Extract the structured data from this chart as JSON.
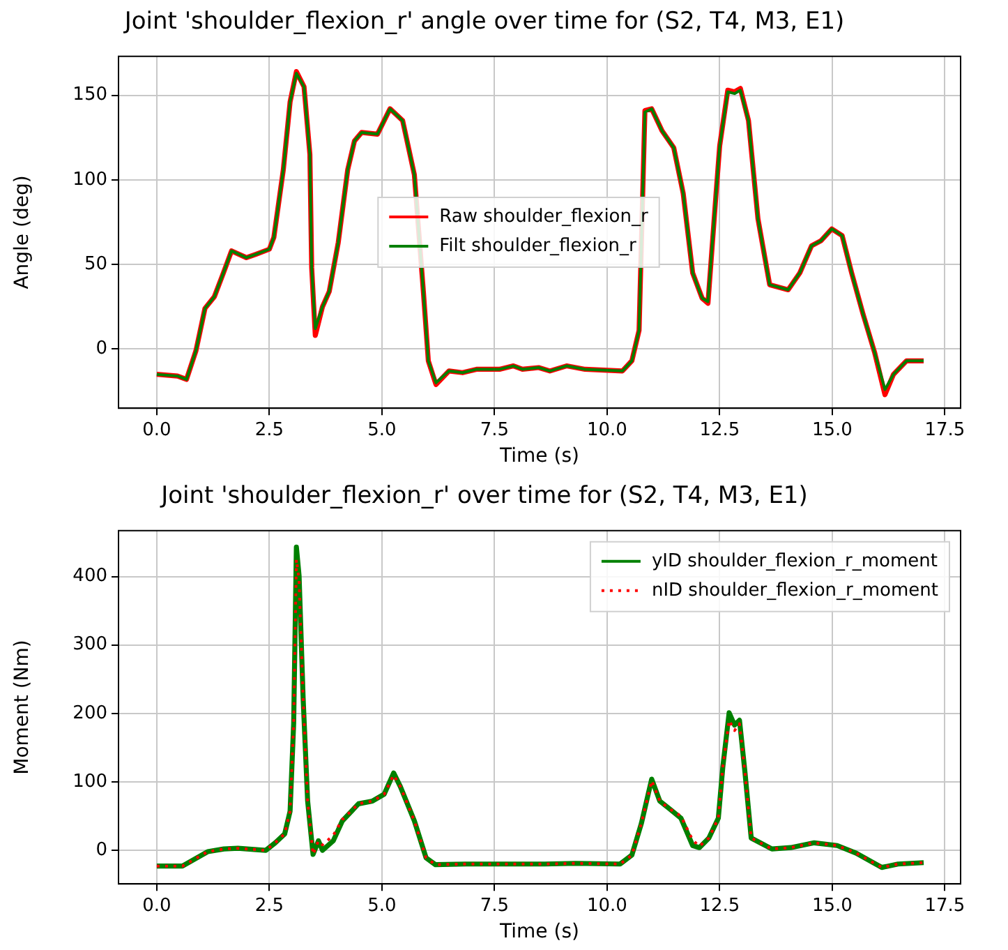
{
  "chart_data": [
    {
      "type": "line",
      "title": "Joint 'shoulder_flexion_r' angle over time for (S2, T4, M3, E1)",
      "xlabel": "Time (s)",
      "ylabel": "Angle (deg)",
      "legend": "center",
      "grid": true,
      "xlim": [
        -0.85,
        17.85
      ],
      "xticks": [
        {
          "value": 0,
          "label": "0.0"
        },
        {
          "value": 2.5,
          "label": "2.5"
        },
        {
          "value": 5,
          "label": "5.0"
        },
        {
          "value": 7.5,
          "label": "7.5"
        },
        {
          "value": 10,
          "label": "10.0"
        },
        {
          "value": 12.5,
          "label": "12.5"
        },
        {
          "value": 15,
          "label": "15.0"
        },
        {
          "value": 17.5,
          "label": "17.5"
        }
      ],
      "ylim": [
        -35,
        173
      ],
      "yticks": [
        0,
        50,
        100,
        150
      ],
      "series": [
        {
          "name": "Raw shoulder_flexion_r",
          "color": "#ff0000",
          "line_style": "solid",
          "x": [
            0,
            0.46,
            0.66,
            0.87,
            1.07,
            1.28,
            1.48,
            1.66,
            1.99,
            2.2,
            2.5,
            2.6,
            2.81,
            2.96,
            3.1,
            3.27,
            3.4,
            3.44,
            3.52,
            3.68,
            3.83,
            4.03,
            4.24,
            4.39,
            4.55,
            4.9,
            5.18,
            5.46,
            5.72,
            5.92,
            6.03,
            6.2,
            6.49,
            6.79,
            7.1,
            7.61,
            7.92,
            8.12,
            8.48,
            8.73,
            9.1,
            9.51,
            10.34,
            10.55,
            10.71,
            10.84,
            10.99,
            11.22,
            11.48,
            11.69,
            11.9,
            12.11,
            12.24,
            12.42,
            12.5,
            12.68,
            12.83,
            12.96,
            13.14,
            13.35,
            13.61,
            14.02,
            14.28,
            14.54,
            14.75,
            14.99,
            15.22,
            15.43,
            15.68,
            15.94,
            16.17,
            16.36,
            16.65,
            17.03
          ],
          "values": [
            -15,
            -16,
            -18,
            -1,
            24,
            31,
            45,
            58,
            54,
            56,
            59,
            66,
            106,
            146,
            164,
            155,
            115,
            48,
            8,
            25,
            34,
            63,
            106,
            123,
            128,
            127,
            142,
            135,
            103,
            34,
            -7,
            -21,
            -13,
            -14,
            -12,
            -12,
            -10,
            -12,
            -11,
            -13,
            -10,
            -12,
            -13,
            -7,
            11,
            141,
            142,
            129,
            119,
            92,
            45,
            30,
            27,
            92,
            120,
            153,
            152,
            154,
            135,
            77,
            38,
            35,
            45,
            61,
            64,
            71,
            67,
            45,
            21,
            -2,
            -27,
            -15,
            -7,
            -7
          ]
        },
        {
          "name": "Filt shoulder_flexion_r",
          "color": "#008000",
          "line_style": "solid",
          "x": [
            0,
            0.46,
            0.66,
            0.87,
            1.07,
            1.28,
            1.48,
            1.66,
            1.99,
            2.2,
            2.5,
            2.6,
            2.81,
            2.96,
            3.1,
            3.27,
            3.4,
            3.44,
            3.52,
            3.68,
            3.83,
            4.03,
            4.24,
            4.39,
            4.55,
            4.9,
            5.18,
            5.46,
            5.72,
            5.92,
            6.03,
            6.2,
            6.49,
            6.79,
            7.1,
            7.61,
            7.92,
            8.12,
            8.48,
            8.73,
            9.1,
            9.51,
            10.34,
            10.55,
            10.71,
            10.84,
            10.99,
            11.22,
            11.48,
            11.69,
            11.9,
            12.11,
            12.24,
            12.42,
            12.5,
            12.68,
            12.83,
            12.96,
            13.14,
            13.35,
            13.61,
            14.02,
            14.28,
            14.54,
            14.75,
            14.99,
            15.22,
            15.43,
            15.68,
            15.94,
            16.17,
            16.36,
            16.65,
            17.03
          ],
          "values": [
            -15,
            -16,
            -18,
            -1,
            24,
            31,
            45,
            58,
            54,
            56,
            59,
            66,
            106,
            146,
            163,
            155,
            115,
            48,
            12,
            25,
            34,
            63,
            106,
            123,
            128,
            127,
            142,
            135,
            103,
            34,
            -7,
            -20,
            -13,
            -14,
            -12,
            -12,
            -10,
            -12,
            -11,
            -13,
            -10,
            -12,
            -13,
            -7,
            11,
            140,
            142,
            129,
            119,
            92,
            45,
            30,
            28,
            92,
            120,
            152,
            151,
            153,
            135,
            77,
            38,
            35,
            45,
            61,
            64,
            71,
            67,
            45,
            21,
            -2,
            -24,
            -15,
            -7,
            -7
          ]
        }
      ]
    },
    {
      "type": "line",
      "title": "Joint 'shoulder_flexion_r' over time for (S2, T4, M3, E1)",
      "xlabel": "Time (s)",
      "ylabel": "Moment (Nm)",
      "legend": "top right",
      "grid": true,
      "xlim": [
        -0.85,
        17.85
      ],
      "xticks": [
        {
          "value": 0,
          "label": "0.0"
        },
        {
          "value": 2.5,
          "label": "2.5"
        },
        {
          "value": 5,
          "label": "5.0"
        },
        {
          "value": 7.5,
          "label": "7.5"
        },
        {
          "value": 10,
          "label": "10.0"
        },
        {
          "value": 12.5,
          "label": "12.5"
        },
        {
          "value": 15,
          "label": "15.0"
        },
        {
          "value": 17.5,
          "label": "17.5"
        }
      ],
      "ylim": [
        -49,
        467
      ],
      "yticks": [
        0,
        100,
        200,
        300,
        400
      ],
      "series": [
        {
          "name": "yID shoulder_flexion_r_moment",
          "color": "#008000",
          "line_style": "solid",
          "x": [
            0,
            0.57,
            1.13,
            1.49,
            1.8,
            2.42,
            2.63,
            2.84,
            2.96,
            3.04,
            3.1,
            3.16,
            3.25,
            3.35,
            3.47,
            3.59,
            3.68,
            3.92,
            4.12,
            4.48,
            4.79,
            5.05,
            5.26,
            5.41,
            5.72,
            5.98,
            6.19,
            6.86,
            7.89,
            8.61,
            9.3,
            10.29,
            10.55,
            10.76,
            10.99,
            11.17,
            11.38,
            11.64,
            11.9,
            12.05,
            12.26,
            12.47,
            12.57,
            12.71,
            12.83,
            12.94,
            13.06,
            13.2,
            13.66,
            14.08,
            14.6,
            15.11,
            15.53,
            16.1,
            16.46,
            17.03
          ],
          "values": [
            -23,
            -23,
            -2,
            2,
            3,
            0,
            11,
            24,
            57,
            186,
            443,
            401,
            222,
            72,
            -6,
            14,
            0,
            14,
            43,
            68,
            72,
            82,
            113,
            93,
            43,
            -11,
            -21,
            -20,
            -20,
            -20,
            -19,
            -20,
            -7,
            39,
            104,
            72,
            61,
            47,
            7,
            4,
            18,
            47,
            122,
            201,
            183,
            190,
            115,
            18,
            2,
            4,
            11,
            7,
            -4,
            -25,
            -20,
            -18
          ]
        },
        {
          "name": "nID shoulder_flexion_r_moment",
          "color": "#ff0000",
          "line_style": "dotted",
          "x": [
            0,
            0.57,
            1.13,
            1.49,
            1.8,
            2.42,
            2.63,
            2.84,
            2.96,
            3.04,
            3.1,
            3.16,
            3.25,
            3.35,
            3.47,
            3.59,
            3.68,
            3.92,
            4.12,
            4.48,
            4.79,
            5.05,
            5.26,
            5.41,
            5.72,
            5.98,
            6.19,
            6.86,
            7.89,
            8.61,
            9.3,
            10.29,
            10.55,
            10.76,
            10.99,
            11.17,
            11.38,
            11.64,
            11.9,
            12.05,
            12.26,
            12.47,
            12.57,
            12.71,
            12.83,
            12.94,
            13.06,
            13.2,
            13.66,
            14.08,
            14.6,
            15.11,
            15.53,
            16.1,
            16.46,
            17.03
          ],
          "values": [
            -23,
            -23,
            -2,
            2,
            3,
            0,
            11,
            24,
            57,
            186,
            425,
            395,
            222,
            72,
            -6,
            14,
            8,
            22,
            45,
            68,
            72,
            82,
            110,
            93,
            43,
            -11,
            -21,
            -20,
            -20,
            -20,
            -19,
            -20,
            -7,
            39,
            102,
            72,
            61,
            50,
            15,
            6,
            18,
            47,
            122,
            190,
            175,
            185,
            115,
            18,
            2,
            4,
            11,
            7,
            -4,
            -25,
            -20,
            -18
          ]
        }
      ]
    }
  ]
}
